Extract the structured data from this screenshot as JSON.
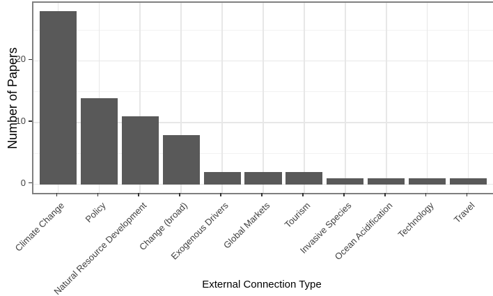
{
  "chart_data": {
    "type": "bar",
    "title": "",
    "xlabel": "External Connection Type",
    "ylabel": "Number of Papers",
    "categories": [
      "Climate Change",
      "Policy",
      "Natural Resource Development",
      "Change (broad)",
      "Exogenous Drivers",
      "Global Markets",
      "Tourism",
      "Invasive Species",
      "Ocean Acidification",
      "Technology",
      "Travel"
    ],
    "values": [
      28,
      14,
      11,
      8,
      2,
      2,
      2,
      1,
      1,
      1,
      1
    ],
    "yticks": [
      0,
      10,
      20
    ],
    "yticks_minor": [
      5,
      15,
      25
    ],
    "ylim": [
      -1.4,
      29.4
    ],
    "x_label_angle": 45,
    "legend": "none",
    "grid": "horizontal major+minor, vertical major at category centers",
    "colors": {
      "bar_fill": "#595959",
      "panel_border": "#7f7f7f",
      "grid_major": "#e7e7e7",
      "grid_minor": "#f2f2f2",
      "axis_tick": "#333333",
      "tick_text": "#404040",
      "title_text": "#000000",
      "background": "#ffffff"
    }
  }
}
